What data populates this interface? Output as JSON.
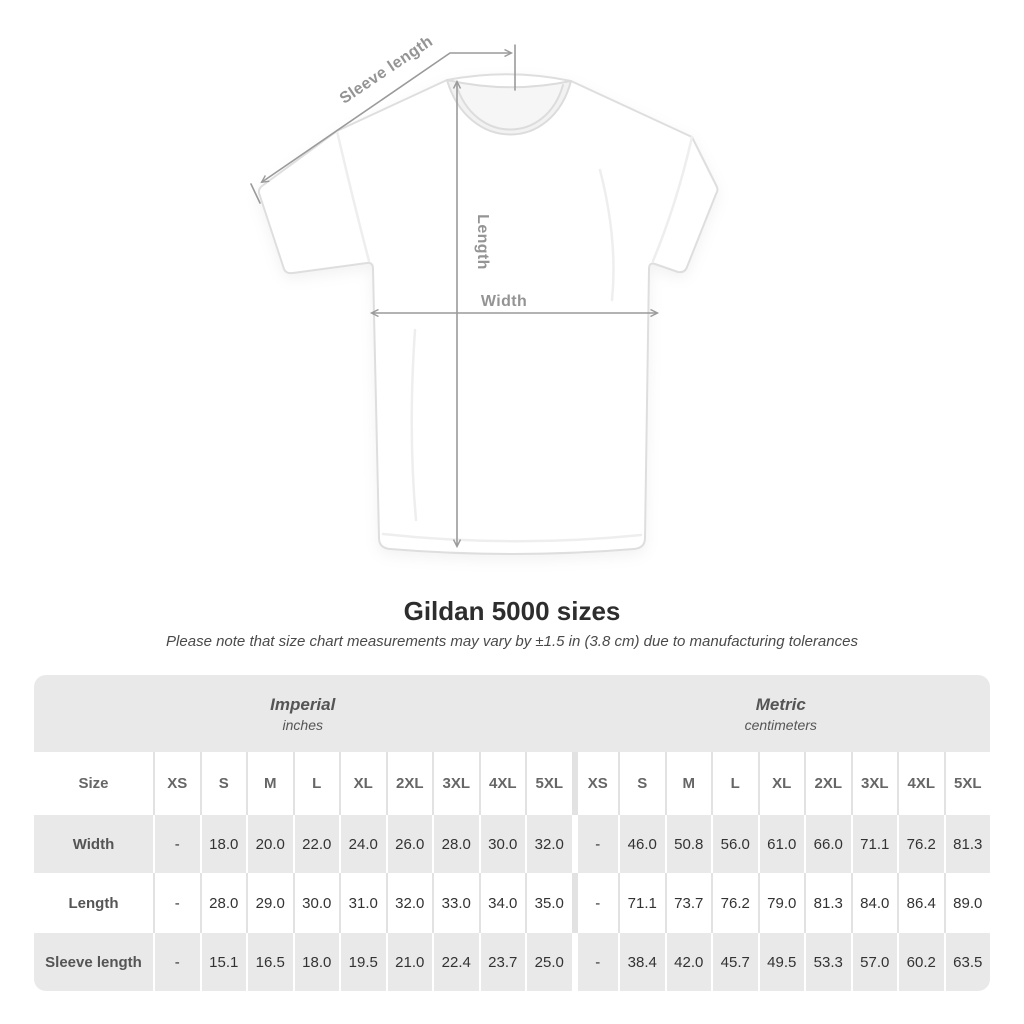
{
  "diagram": {
    "labels": {
      "sleeve_length": "Sleeve length",
      "length": "Length",
      "width": "Width"
    },
    "arrow_color": "#9a9a9a",
    "label_color": "#949494"
  },
  "header": {
    "title": "Gildan 5000 sizes",
    "subtitle": "Please note that size chart measurements may vary by ±1.5 in (3.8 cm) due to manufacturing tolerances"
  },
  "table": {
    "unit_groups": [
      {
        "label": "Imperial",
        "sublabel": "inches"
      },
      {
        "label": "Metric",
        "sublabel": "centimeters"
      }
    ],
    "size_header": "Size",
    "sizes": [
      "XS",
      "S",
      "M",
      "L",
      "XL",
      "2XL",
      "3XL",
      "4XL",
      "5XL"
    ],
    "rows": [
      {
        "label": "Width",
        "imperial": [
          "-",
          "18.0",
          "20.0",
          "22.0",
          "24.0",
          "26.0",
          "28.0",
          "30.0",
          "32.0"
        ],
        "metric": [
          "-",
          "46.0",
          "50.8",
          "56.0",
          "61.0",
          "66.0",
          "71.1",
          "76.2",
          "81.3"
        ]
      },
      {
        "label": "Length",
        "imperial": [
          "-",
          "28.0",
          "29.0",
          "30.0",
          "31.0",
          "32.0",
          "33.0",
          "34.0",
          "35.0"
        ],
        "metric": [
          "-",
          "71.1",
          "73.7",
          "76.2",
          "79.0",
          "81.3",
          "84.0",
          "86.4",
          "89.0"
        ]
      },
      {
        "label": "Sleeve length",
        "imperial": [
          "-",
          "15.1",
          "16.5",
          "18.0",
          "19.5",
          "21.0",
          "22.4",
          "23.7",
          "25.0"
        ],
        "metric": [
          "-",
          "38.4",
          "42.0",
          "45.7",
          "49.5",
          "53.3",
          "57.0",
          "60.2",
          "63.5"
        ]
      }
    ],
    "colors": {
      "band_bg": "#e9e9e9",
      "alt_row_bg": "#e9e9e9",
      "separator_on_white": "#e2e2e2",
      "separator_on_gray": "#ffffff",
      "header_text": "#666666",
      "label_text": "#555555",
      "value_text": "#333333"
    }
  }
}
